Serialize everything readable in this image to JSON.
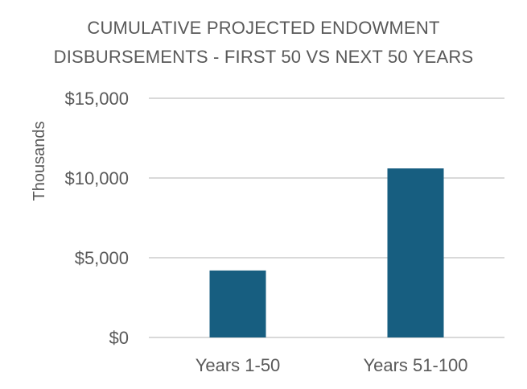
{
  "chart_data": {
    "type": "bar",
    "title_lines": [
      "CUMULATIVE PROJECTED ENDOWMENT",
      "DISBURSEMENTS - FIRST 50 VS NEXT 50 YEARS"
    ],
    "ylabel": "Thousands",
    "xlabel": "",
    "categories": [
      "Years 1-50",
      "Years 51-100"
    ],
    "values": [
      4200,
      10600
    ],
    "ylim": [
      0,
      15000
    ],
    "yticks": [
      0,
      5000,
      10000,
      15000
    ],
    "ytick_labels": [
      "$0",
      "$5,000",
      "$10,000",
      "$15,000"
    ],
    "grid": true,
    "legend": "none",
    "bar_color": "#175e80",
    "grid_color": "#d9d9d9",
    "text_color": "#595959"
  }
}
